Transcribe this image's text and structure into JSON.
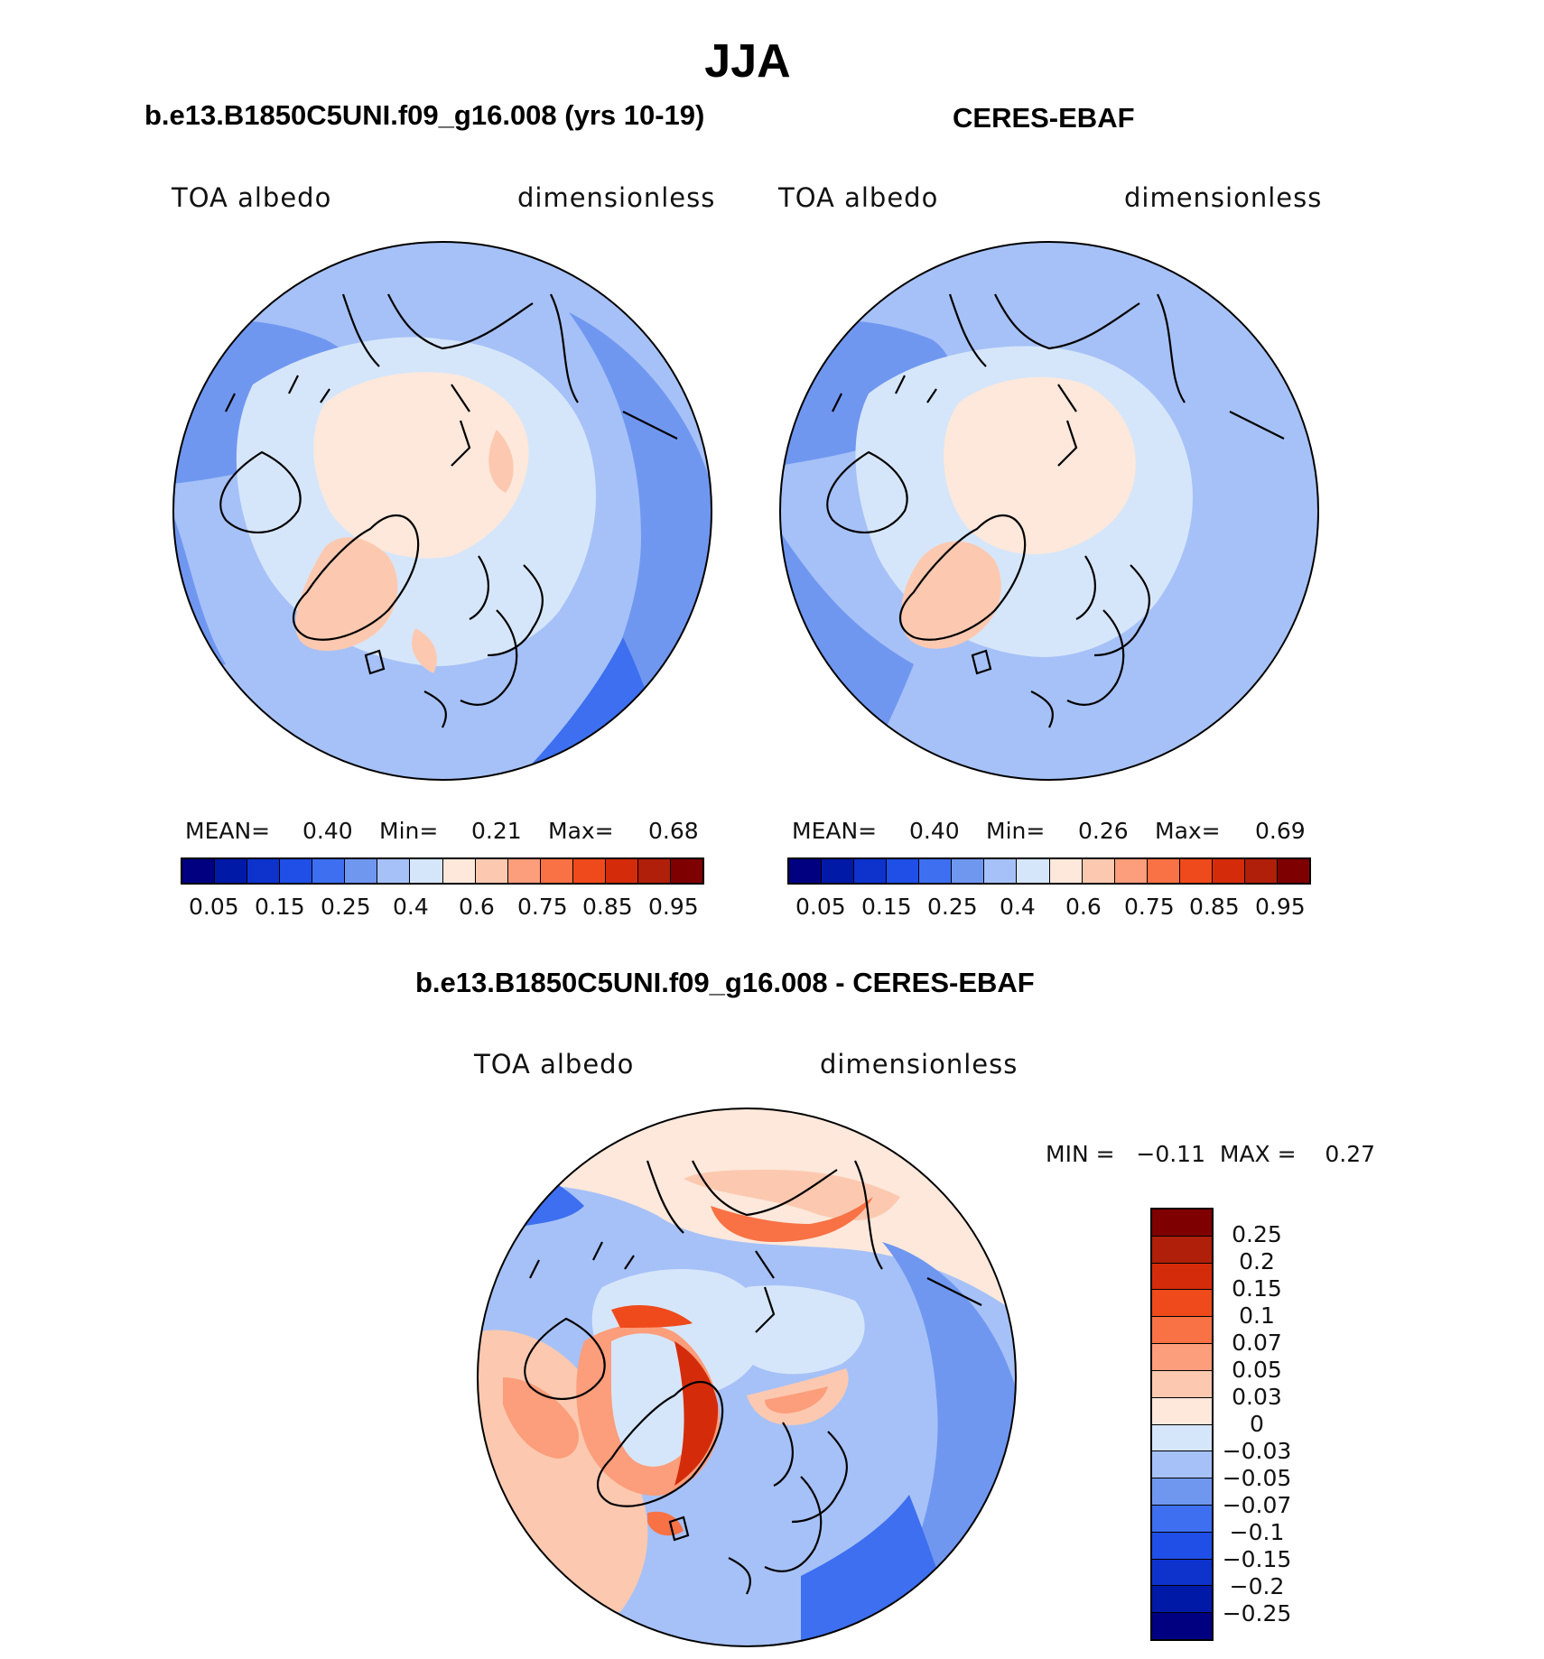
{
  "title": "JJA",
  "colors": {
    "abs_scale": [
      "#000080",
      "#0019a6",
      "#0d33cc",
      "#1f4fe6",
      "#3d6ff0",
      "#7097f0",
      "#a6c1f7",
      "#d6e6fa",
      "#fde8db",
      "#fcc9b0",
      "#fc9d7b",
      "#f87245",
      "#ef4a1b",
      "#d42c0b",
      "#b01f09",
      "#7f0000"
    ],
    "diff_scale": [
      "#7f0000",
      "#b01f09",
      "#d42c0b",
      "#ef4a1b",
      "#f87245",
      "#fc9d7b",
      "#fcc9b0",
      "#fde8db",
      "#d6e6fa",
      "#a6c1f7",
      "#7097f0",
      "#3d6ff0",
      "#1f4fe6",
      "#0d33cc",
      "#0019a6",
      "#000080"
    ]
  },
  "panels": [
    {
      "subtitle": "b.e13.B1850C5UNI.f09_g16.008 (yrs 10-19)",
      "variable": "TOA albedo",
      "units": "dimensionless",
      "stats": {
        "mean_label": "MEAN=",
        "mean": "0.40",
        "min_label": "Min=",
        "min": "0.21",
        "max_label": "Max=",
        "max": "0.68"
      },
      "ticks": [
        "0.05",
        "0.15",
        "0.25",
        "0.4",
        "0.6",
        "0.75",
        "0.85",
        "0.95"
      ]
    },
    {
      "subtitle": "CERES-EBAF",
      "variable": "TOA albedo",
      "units": "dimensionless",
      "stats": {
        "mean_label": "MEAN=",
        "mean": "0.40",
        "min_label": "Min=",
        "min": "0.26",
        "max_label": "Max=",
        "max": "0.69"
      },
      "ticks": [
        "0.05",
        "0.15",
        "0.25",
        "0.4",
        "0.6",
        "0.75",
        "0.85",
        "0.95"
      ]
    }
  ],
  "diff": {
    "subtitle": "b.e13.B1850C5UNI.f09_g16.008 - CERES-EBAF",
    "variable": "TOA albedo",
    "units": "dimensionless",
    "minmax": "MIN =   −0.11  MAX =    0.27",
    "ticks": [
      "0.25",
      "0.2",
      "0.15",
      "0.1",
      "0.07",
      "0.05",
      "0.03",
      "0",
      "−0.03",
      "−0.05",
      "−0.07",
      "−0.1",
      "−0.15",
      "−0.2",
      "−0.25"
    ]
  }
}
